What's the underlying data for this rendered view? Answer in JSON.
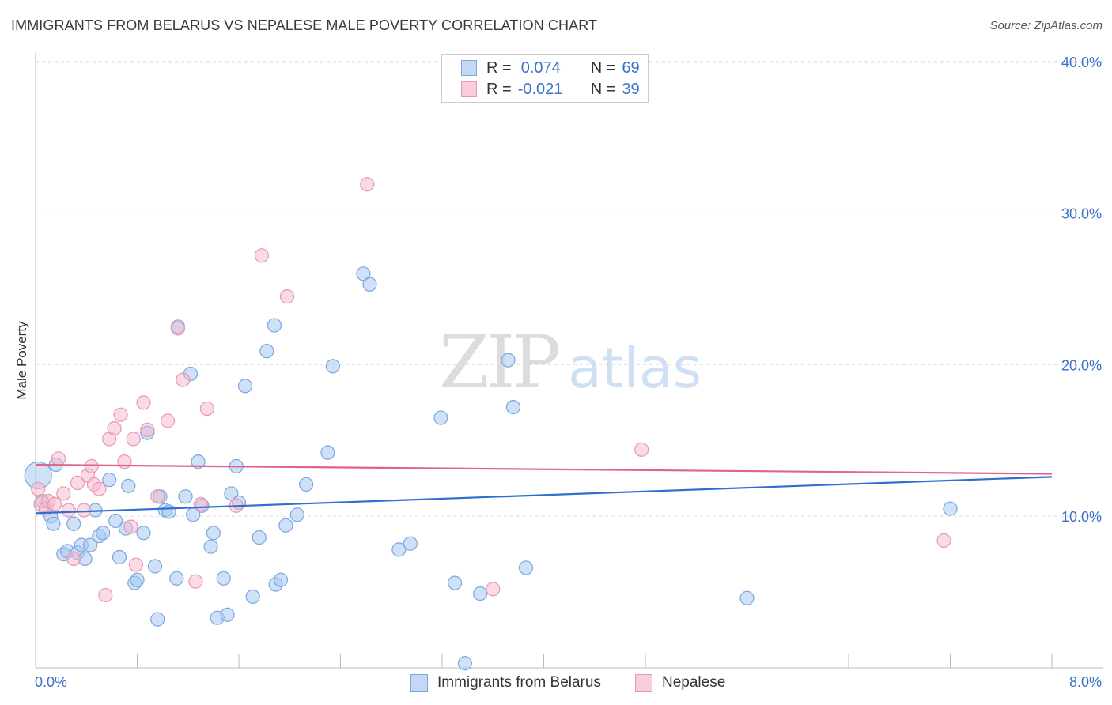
{
  "title": "IMMIGRANTS FROM BELARUS VS NEPALESE MALE POVERTY CORRELATION CHART",
  "source": "Source: ZipAtlas.com",
  "watermark": {
    "zip": "ZIP",
    "atlas": "atlas"
  },
  "legend": {
    "series": [
      {
        "r_label": "R =",
        "r_value": "0.074",
        "n_label": "N =",
        "n_value": "69"
      },
      {
        "r_label": "R =",
        "r_value": "-0.021",
        "n_label": "N =",
        "n_value": "39"
      }
    ]
  },
  "bottom_legend": [
    "Immigrants from Belarus",
    "Nepalese"
  ],
  "colors": {
    "blue_fill": "#a8c8f0",
    "blue_stroke": "#7aa7e0",
    "blue_line": "#2f6fcf",
    "pink_fill": "#f5b8cc",
    "pink_stroke": "#e897b2",
    "pink_line": "#e0628f",
    "axis_text": "#3a72c8"
  },
  "chart_data": {
    "type": "scatter",
    "title": "IMMIGRANTS FROM BELARUS VS NEPALESE MALE POVERTY CORRELATION CHART",
    "xlabel": "",
    "ylabel": "Male Poverty",
    "xlim": [
      0,
      8.4
    ],
    "ylim": [
      0,
      41.5
    ],
    "x_tick_labels": [
      "0.0%",
      "8.0%"
    ],
    "y_ticks": [
      10,
      20,
      30,
      40
    ],
    "y_tick_labels": [
      "10.0%",
      "20.0%",
      "30.0%",
      "40.0%"
    ],
    "series": [
      {
        "name": "Immigrants from Belarus",
        "r": 0.074,
        "n": 69,
        "trend": {
          "x0": 0.0,
          "y0": 10.2,
          "x1": 8.0,
          "y1": 12.6
        },
        "points": [
          [
            0.02,
            12.7
          ],
          [
            0.05,
            11.0
          ],
          [
            0.12,
            10.0
          ],
          [
            0.14,
            9.5
          ],
          [
            0.16,
            13.4
          ],
          [
            0.22,
            7.5
          ],
          [
            0.25,
            7.7
          ],
          [
            0.3,
            9.5
          ],
          [
            0.33,
            7.6
          ],
          [
            0.36,
            8.1
          ],
          [
            0.39,
            7.2
          ],
          [
            0.43,
            8.1
          ],
          [
            0.47,
            10.4
          ],
          [
            0.5,
            8.7
          ],
          [
            0.53,
            8.9
          ],
          [
            0.58,
            12.4
          ],
          [
            0.63,
            9.7
          ],
          [
            0.66,
            7.3
          ],
          [
            0.71,
            9.2
          ],
          [
            0.73,
            12.0
          ],
          [
            0.78,
            5.6
          ],
          [
            0.8,
            5.8
          ],
          [
            0.85,
            8.9
          ],
          [
            0.88,
            15.5
          ],
          [
            0.94,
            6.7
          ],
          [
            0.96,
            3.2
          ],
          [
            0.98,
            11.3
          ],
          [
            1.02,
            10.4
          ],
          [
            1.05,
            10.3
          ],
          [
            1.11,
            5.9
          ],
          [
            1.12,
            22.5
          ],
          [
            1.18,
            11.3
          ],
          [
            1.22,
            19.4
          ],
          [
            1.24,
            10.1
          ],
          [
            1.28,
            13.6
          ],
          [
            1.31,
            10.7
          ],
          [
            1.38,
            8.0
          ],
          [
            1.4,
            8.9
          ],
          [
            1.43,
            3.3
          ],
          [
            1.48,
            5.9
          ],
          [
            1.51,
            3.5
          ],
          [
            1.54,
            11.5
          ],
          [
            1.58,
            13.3
          ],
          [
            1.6,
            10.9
          ],
          [
            1.65,
            18.6
          ],
          [
            1.71,
            4.7
          ],
          [
            1.76,
            8.6
          ],
          [
            1.82,
            20.9
          ],
          [
            1.88,
            22.6
          ],
          [
            1.89,
            5.5
          ],
          [
            1.93,
            5.8
          ],
          [
            1.97,
            9.4
          ],
          [
            2.06,
            10.1
          ],
          [
            2.13,
            12.1
          ],
          [
            2.3,
            14.2
          ],
          [
            2.34,
            19.9
          ],
          [
            2.58,
            26.0
          ],
          [
            2.63,
            25.3
          ],
          [
            2.86,
            7.8
          ],
          [
            2.95,
            8.2
          ],
          [
            3.19,
            16.5
          ],
          [
            3.3,
            5.6
          ],
          [
            3.38,
            0.3
          ],
          [
            3.5,
            4.9
          ],
          [
            3.72,
            20.3
          ],
          [
            3.76,
            17.2
          ],
          [
            3.86,
            6.6
          ],
          [
            5.6,
            4.6
          ],
          [
            7.2,
            10.5
          ]
        ]
      },
      {
        "name": "Nepalese",
        "r": -0.021,
        "n": 39,
        "trend": {
          "x0": 0.0,
          "y0": 13.4,
          "x1": 8.0,
          "y1": 12.8
        },
        "points": [
          [
            0.02,
            11.8
          ],
          [
            0.05,
            10.8
          ],
          [
            0.08,
            10.5
          ],
          [
            0.1,
            11.0
          ],
          [
            0.15,
            10.8
          ],
          [
            0.18,
            13.8
          ],
          [
            0.22,
            11.5
          ],
          [
            0.26,
            10.4
          ],
          [
            0.3,
            7.2
          ],
          [
            0.33,
            12.2
          ],
          [
            0.38,
            10.4
          ],
          [
            0.41,
            12.7
          ],
          [
            0.44,
            13.3
          ],
          [
            0.46,
            12.1
          ],
          [
            0.5,
            11.8
          ],
          [
            0.55,
            4.8
          ],
          [
            0.58,
            15.1
          ],
          [
            0.62,
            15.8
          ],
          [
            0.67,
            16.7
          ],
          [
            0.7,
            13.6
          ],
          [
            0.75,
            9.3
          ],
          [
            0.77,
            15.1
          ],
          [
            0.79,
            6.8
          ],
          [
            0.85,
            17.5
          ],
          [
            0.88,
            15.7
          ],
          [
            0.96,
            11.3
          ],
          [
            1.04,
            16.3
          ],
          [
            1.12,
            22.4
          ],
          [
            1.16,
            19.0
          ],
          [
            1.26,
            5.7
          ],
          [
            1.3,
            10.8
          ],
          [
            1.35,
            17.1
          ],
          [
            1.58,
            10.7
          ],
          [
            1.78,
            27.2
          ],
          [
            1.98,
            24.5
          ],
          [
            2.61,
            31.9
          ],
          [
            3.6,
            5.2
          ],
          [
            4.77,
            14.4
          ],
          [
            7.15,
            8.4
          ]
        ]
      }
    ]
  }
}
